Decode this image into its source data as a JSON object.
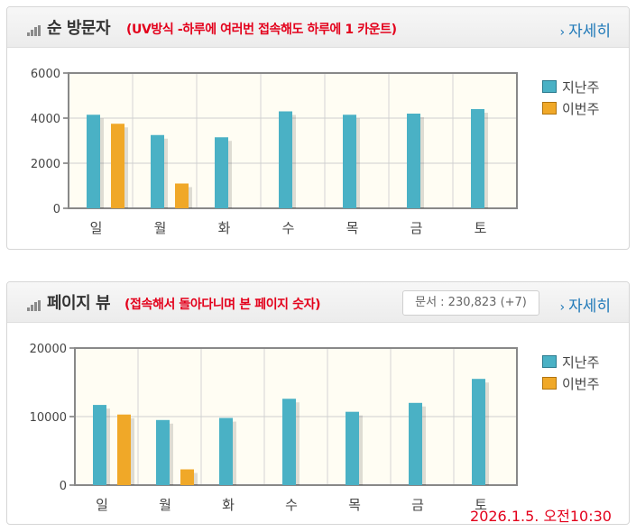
{
  "colors": {
    "last_week": "#4ab1c5",
    "this_week": "#f0a828"
  },
  "panels": [
    {
      "title": "순 방문자",
      "subtitle": "(UV방식 -하루에 여러번 접속해도 하루에 1 카운트)",
      "more_label": "자세히",
      "legend": [
        "지난주",
        "이번주"
      ],
      "chart_data": {
        "type": "bar",
        "categories": [
          "일",
          "월",
          "화",
          "수",
          "목",
          "금",
          "토"
        ],
        "series": [
          {
            "name": "지난주",
            "values": [
              4150,
              3250,
              3150,
              4300,
              4150,
              4200,
              4400
            ]
          },
          {
            "name": "이번주",
            "values": [
              3750,
              1100,
              null,
              null,
              null,
              null,
              null
            ]
          }
        ],
        "yticks": [
          "0",
          "2000",
          "4000",
          "6000"
        ],
        "ylim": [
          0,
          6000
        ],
        "grid": true,
        "legend_position": "right"
      }
    },
    {
      "title": "페이지 뷰",
      "subtitle": "(접속해서 돌아다니며 본 페이지 숫자)",
      "doc_count": "문서 : 230,823 (+7)",
      "more_label": "자세히",
      "legend": [
        "지난주",
        "이번주"
      ],
      "chart_data": {
        "type": "bar",
        "categories": [
          "일",
          "월",
          "화",
          "수",
          "목",
          "금",
          "토"
        ],
        "series": [
          {
            "name": "지난주",
            "values": [
              11700,
              9500,
              9800,
              12600,
              10700,
              12000,
              15500
            ]
          },
          {
            "name": "이번주",
            "values": [
              10300,
              2300,
              null,
              null,
              null,
              null,
              null
            ]
          }
        ],
        "yticks": [
          "0",
          "10000",
          "20000"
        ],
        "ylim": [
          0,
          20000
        ],
        "grid": true,
        "legend_position": "right"
      }
    }
  ],
  "timestamp": "2026.1.5. 오전10:30"
}
